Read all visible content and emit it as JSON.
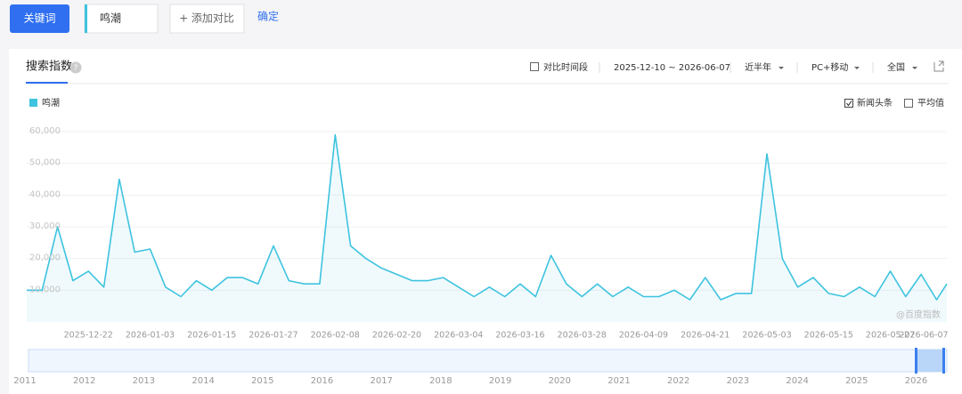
{
  "ui": {
    "keyword_button": "关键词",
    "keyword": "鸣潮",
    "add_compare": "+ 添加对比",
    "confirm": "确定",
    "tab": "搜索指数",
    "help": "?",
    "compare_period": "对比时间段",
    "date_range": "2025-12-10 ~ 2026-06-07",
    "period": "近半年",
    "device": "PC+移动",
    "region": "全国",
    "news_headline": "新闻头条",
    "average": "平均值",
    "watermark": "@百度指数"
  },
  "chart_data": {
    "type": "line",
    "x": [
      "2025-12-10",
      "2025-12-13",
      "2025-12-16",
      "2025-12-19",
      "2025-12-22",
      "2025-12-25",
      "2025-12-28",
      "2025-12-31",
      "2026-01-03",
      "2026-01-06",
      "2026-01-09",
      "2026-01-12",
      "2026-01-15",
      "2026-01-18",
      "2026-01-21",
      "2026-01-24",
      "2026-01-27",
      "2026-01-30",
      "2026-02-02",
      "2026-02-05",
      "2026-02-08",
      "2026-02-11",
      "2026-02-14",
      "2026-02-17",
      "2026-02-20",
      "2026-02-23",
      "2026-02-26",
      "2026-03-01",
      "2026-03-04",
      "2026-03-07",
      "2026-03-10",
      "2026-03-13",
      "2026-03-16",
      "2026-03-19",
      "2026-03-22",
      "2026-03-25",
      "2026-03-28",
      "2026-03-31",
      "2026-04-03",
      "2026-04-06",
      "2026-04-09",
      "2026-04-12",
      "2026-04-15",
      "2026-04-18",
      "2026-04-21",
      "2026-04-24",
      "2026-04-27",
      "2026-04-30",
      "2026-05-03",
      "2026-05-06",
      "2026-05-09",
      "2026-05-12",
      "2026-05-15",
      "2026-05-18",
      "2026-05-21",
      "2026-05-24",
      "2026-05-27",
      "2026-05-30",
      "2026-06-02",
      "2026-06-05",
      "2026-06-07"
    ],
    "series": [
      {
        "name": "鸣潮",
        "color": "#3ec3df",
        "values": [
          10000,
          10000,
          30000,
          13000,
          16000,
          11000,
          45000,
          22000,
          23000,
          11000,
          8000,
          13000,
          10000,
          14000,
          14000,
          12000,
          24000,
          13000,
          12000,
          12000,
          59000,
          24000,
          20000,
          17000,
          15000,
          13000,
          13000,
          14000,
          11000,
          8000,
          11000,
          8000,
          12000,
          8000,
          21000,
          12000,
          8000,
          12000,
          8000,
          11000,
          8000,
          8000,
          10000,
          7000,
          14000,
          7000,
          9000,
          9000,
          53000,
          20000,
          11000,
          14000,
          9000,
          8000,
          11000,
          8000,
          16000,
          8000,
          15000,
          7000,
          12000
        ]
      }
    ],
    "ylim": [
      0,
      60000
    ],
    "yticks": [
      {
        "value": 10000,
        "label": "10,000"
      },
      {
        "value": 20000,
        "label": "20,000"
      },
      {
        "value": 30000,
        "label": "30,000"
      },
      {
        "value": 40000,
        "label": "40,000"
      },
      {
        "value": 50000,
        "label": "50,000"
      },
      {
        "value": 60000,
        "label": "60,000"
      }
    ],
    "xticks": [
      "2025-12-22",
      "2026-01-03",
      "2026-01-15",
      "2026-01-27",
      "2026-02-08",
      "2026-02-20",
      "2026-03-04",
      "2026-03-16",
      "2026-03-28",
      "2026-04-09",
      "2026-04-21",
      "2026-05-03",
      "2026-05-15",
      "2026-05-27",
      "2026-06-07"
    ],
    "grid": true
  },
  "navigator": {
    "years": [
      "2011",
      "2012",
      "2013",
      "2014",
      "2015",
      "2016",
      "2017",
      "2018",
      "2019",
      "2020",
      "2021",
      "2022",
      "2023",
      "2024",
      "2025",
      "2026"
    ]
  }
}
